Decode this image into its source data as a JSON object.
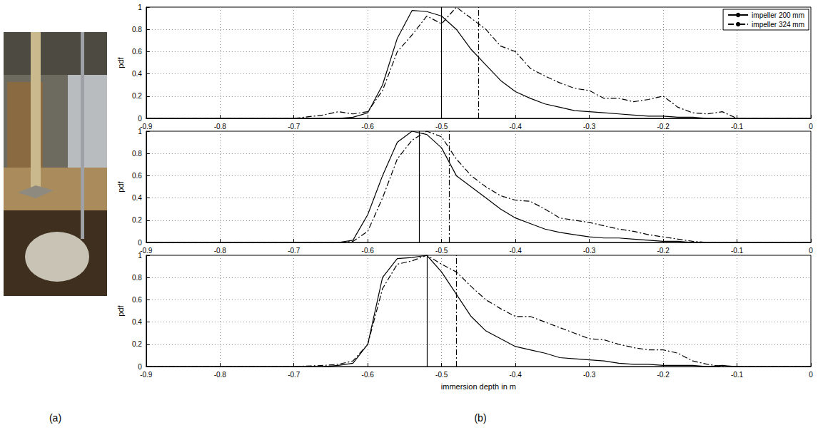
{
  "panel_labels": [
    "(a)",
    "(b)"
  ],
  "chart_data": [
    {
      "type": "line",
      "ylabel": "pdf",
      "legend": "upper right",
      "grid": true,
      "x": [
        -0.9,
        -0.7,
        -0.66,
        -0.64,
        -0.62,
        -0.6,
        -0.58,
        -0.56,
        -0.54,
        -0.52,
        -0.5,
        -0.48,
        -0.46,
        -0.44,
        -0.42,
        -0.4,
        -0.38,
        -0.36,
        -0.34,
        -0.32,
        -0.3,
        -0.28,
        -0.26,
        -0.24,
        -0.22,
        -0.2,
        -0.18,
        -0.16,
        -0.14,
        -0.12,
        -0.1,
        0
      ],
      "xlim": [
        -0.9,
        0
      ],
      "xticks": [
        -0.9,
        -0.8,
        -0.7,
        -0.6,
        -0.5,
        -0.4,
        -0.3,
        -0.2,
        -0.1,
        0
      ],
      "ylim": [
        0,
        1
      ],
      "yticks": [
        0,
        0.2,
        0.4,
        0.6,
        0.8,
        1
      ],
      "series": [
        {
          "name": "impeller 200 mm",
          "color": "#000000",
          "line_style": "solid",
          "vline": -0.5,
          "values": [
            0,
            0,
            0,
            0,
            0.01,
            0.05,
            0.3,
            0.72,
            0.97,
            0.96,
            0.92,
            0.8,
            0.62,
            0.48,
            0.34,
            0.24,
            0.18,
            0.13,
            0.1,
            0.07,
            0.06,
            0.05,
            0.04,
            0.03,
            0.02,
            0.02,
            0.01,
            0.01,
            0,
            0,
            0,
            0
          ]
        },
        {
          "name": "impeller 324 mm",
          "color": "#000000",
          "line_style": "dashdot",
          "vline": -0.45,
          "values": [
            0,
            0,
            0.03,
            0.06,
            0.04,
            0.06,
            0.25,
            0.6,
            0.75,
            0.92,
            0.85,
            1.0,
            0.9,
            0.8,
            0.65,
            0.6,
            0.45,
            0.38,
            0.32,
            0.27,
            0.25,
            0.18,
            0.18,
            0.15,
            0.17,
            0.2,
            0.1,
            0.05,
            0.04,
            0.06,
            0,
            0
          ]
        }
      ]
    },
    {
      "type": "line",
      "ylabel": "pdf",
      "grid": true,
      "x": [
        -0.9,
        -0.7,
        -0.66,
        -0.64,
        -0.62,
        -0.6,
        -0.58,
        -0.56,
        -0.54,
        -0.52,
        -0.5,
        -0.48,
        -0.46,
        -0.44,
        -0.42,
        -0.4,
        -0.38,
        -0.36,
        -0.34,
        -0.32,
        -0.3,
        -0.28,
        -0.26,
        -0.24,
        -0.22,
        -0.2,
        -0.18,
        -0.16,
        -0.14,
        -0.12,
        -0.1,
        0
      ],
      "xlim": [
        -0.9,
        0
      ],
      "xticks": [
        -0.9,
        -0.8,
        -0.7,
        -0.6,
        -0.5,
        -0.4,
        -0.3,
        -0.2,
        -0.1,
        0
      ],
      "ylim": [
        0,
        1
      ],
      "yticks": [
        0,
        0.2,
        0.4,
        0.6,
        0.8,
        1
      ],
      "series": [
        {
          "name": "impeller 200 mm",
          "color": "#000000",
          "line_style": "solid",
          "vline": -0.53,
          "values": [
            0,
            0,
            0,
            0,
            0.02,
            0.25,
            0.6,
            0.9,
            1.0,
            0.97,
            0.85,
            0.6,
            0.5,
            0.4,
            0.3,
            0.22,
            0.17,
            0.12,
            0.09,
            0.07,
            0.05,
            0.04,
            0.04,
            0.03,
            0.02,
            0.01,
            0.01,
            0,
            0,
            0,
            0,
            0
          ]
        },
        {
          "name": "impeller 324 mm",
          "color": "#000000",
          "line_style": "dashdot",
          "vline": -0.49,
          "values": [
            0,
            0,
            0,
            0,
            0.01,
            0.1,
            0.4,
            0.75,
            0.92,
            1.0,
            0.95,
            0.75,
            0.6,
            0.5,
            0.42,
            0.38,
            0.37,
            0.3,
            0.22,
            0.2,
            0.18,
            0.15,
            0.12,
            0.1,
            0.07,
            0.05,
            0.03,
            0.01,
            0,
            0,
            0,
            0
          ]
        }
      ]
    },
    {
      "type": "line",
      "ylabel": "pdf",
      "xlabel": "immersion depth in m",
      "grid": true,
      "x": [
        -0.9,
        -0.7,
        -0.66,
        -0.64,
        -0.62,
        -0.6,
        -0.58,
        -0.56,
        -0.54,
        -0.52,
        -0.5,
        -0.48,
        -0.46,
        -0.44,
        -0.42,
        -0.4,
        -0.38,
        -0.36,
        -0.34,
        -0.32,
        -0.3,
        -0.28,
        -0.26,
        -0.24,
        -0.22,
        -0.2,
        -0.18,
        -0.16,
        -0.14,
        -0.12,
        -0.1,
        0
      ],
      "xlim": [
        -0.9,
        0
      ],
      "xticks": [
        -0.9,
        -0.8,
        -0.7,
        -0.6,
        -0.5,
        -0.4,
        -0.3,
        -0.2,
        -0.1,
        0
      ],
      "ylim": [
        0,
        1
      ],
      "yticks": [
        0,
        0.2,
        0.4,
        0.6,
        0.8,
        1
      ],
      "series": [
        {
          "name": "impeller 200 mm",
          "color": "#000000",
          "line_style": "solid",
          "vline": -0.52,
          "values": [
            0,
            0,
            0,
            0.01,
            0.03,
            0.2,
            0.8,
            0.97,
            0.98,
            1.0,
            0.85,
            0.65,
            0.45,
            0.32,
            0.25,
            0.18,
            0.15,
            0.12,
            0.08,
            0.07,
            0.06,
            0.05,
            0.03,
            0.02,
            0.02,
            0.01,
            0.01,
            0.01,
            0,
            0.01,
            0,
            0
          ]
        },
        {
          "name": "impeller 324 mm",
          "color": "#000000",
          "line_style": "dashdot",
          "vline": -0.48,
          "values": [
            0,
            0,
            0.01,
            0.02,
            0.05,
            0.2,
            0.7,
            0.92,
            0.95,
            1.0,
            0.92,
            0.85,
            0.72,
            0.6,
            0.52,
            0.45,
            0.45,
            0.4,
            0.35,
            0.3,
            0.25,
            0.24,
            0.2,
            0.17,
            0.15,
            0.15,
            0.12,
            0.05,
            0.02,
            0,
            0,
            0
          ]
        }
      ]
    }
  ]
}
